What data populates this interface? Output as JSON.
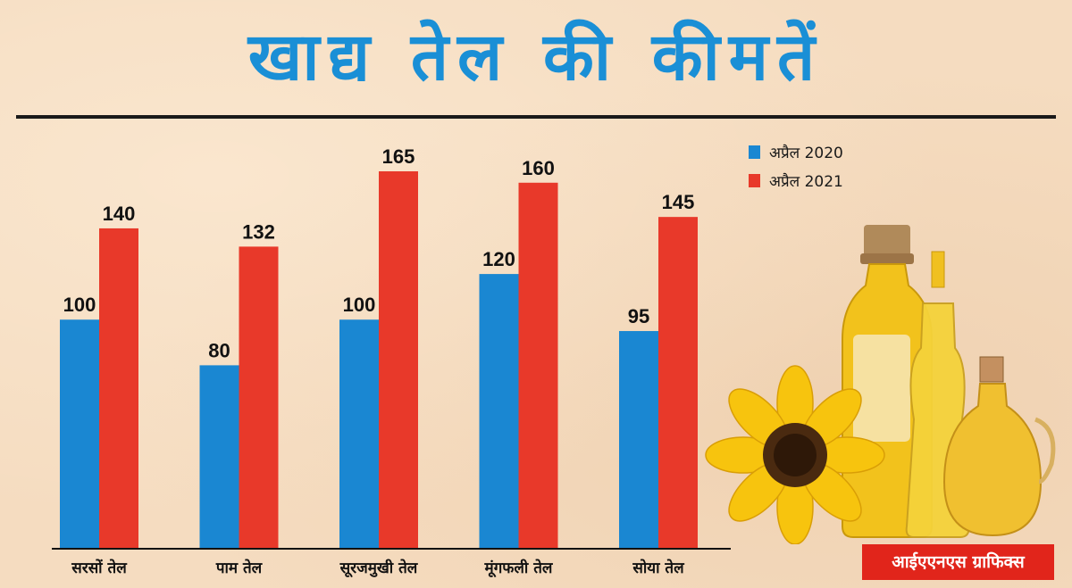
{
  "title": "खाद्य तेल की कीमतें",
  "credit": "आईएएनएस ग्राफिक्स",
  "colors": {
    "april_2020": "#1a87d2",
    "april_2021": "#e8392a",
    "title": "#1a8fd6",
    "credit_bg": "#e1251b"
  },
  "chart_data": {
    "type": "bar",
    "title": "खाद्य तेल की कीमतें",
    "categories": [
      "सरसों तेल",
      "पाम तेल",
      "सूरजमुखी तेल",
      "मूंगफली तेल",
      "सोया तेल"
    ],
    "series": [
      {
        "name": "अप्रैल 2020",
        "values": [
          100,
          80,
          100,
          120,
          95
        ]
      },
      {
        "name": "अप्रैल 2021",
        "values": [
          140,
          132,
          165,
          160,
          145
        ]
      }
    ],
    "ylim": [
      0,
      165
    ],
    "grid": false,
    "legend": "top-right",
    "data_labels": true
  }
}
